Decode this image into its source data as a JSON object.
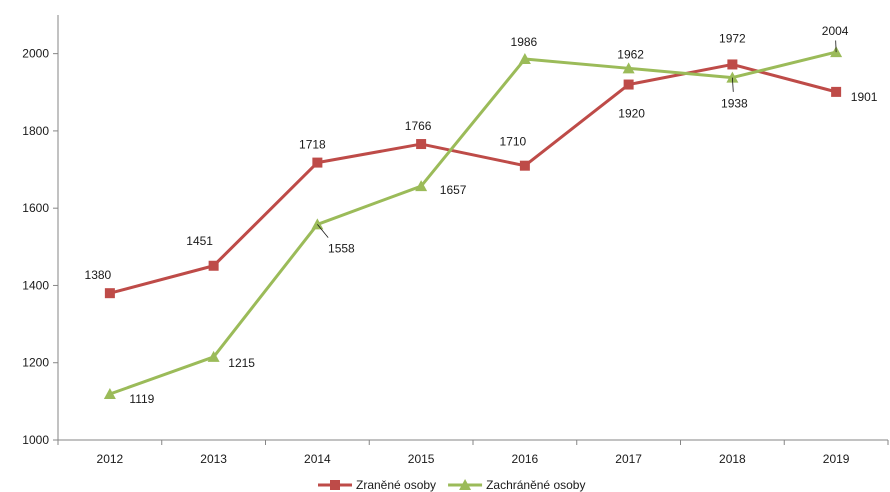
{
  "chart_data": {
    "type": "line",
    "title": "",
    "xlabel": "",
    "ylabel": "",
    "categories": [
      "2012",
      "2013",
      "2014",
      "2015",
      "2016",
      "2017",
      "2018",
      "2019"
    ],
    "ylim": [
      1000,
      2100
    ],
    "yticks": [
      1000,
      1200,
      1400,
      1600,
      1800,
      2000
    ],
    "grid": false,
    "legend_position": "bottom",
    "series": [
      {
        "name": "Zraněné osoby",
        "marker": "square",
        "color": "#be4b48",
        "values": [
          1380,
          1451,
          1718,
          1766,
          1710,
          1920,
          1972,
          1901
        ]
      },
      {
        "name": "Zachráněné osoby",
        "marker": "triangle",
        "color": "#9bbb59",
        "values": [
          1119,
          1215,
          1558,
          1657,
          1986,
          1962,
          1938,
          2004
        ]
      }
    ]
  }
}
